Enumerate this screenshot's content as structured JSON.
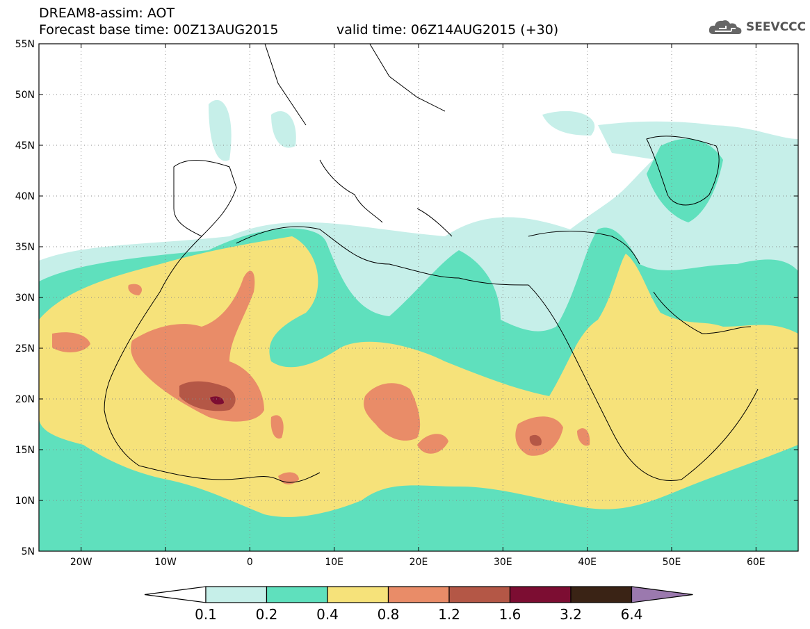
{
  "header": {
    "title_line1": "DREAM8-assim: AOT",
    "title_line2_base": "Forecast base time: 00Z13AUG2015",
    "title_line2_valid": "valid time: 06Z14AUG2015 (+30)"
  },
  "logo": {
    "text": "SEEVCCC",
    "icon": "cloud-logo-icon"
  },
  "map": {
    "lon_range": [
      -25,
      65
    ],
    "lat_range": [
      5,
      55
    ],
    "lat_ticks": [
      "55N",
      "50N",
      "45N",
      "40N",
      "35N",
      "30N",
      "25N",
      "20N",
      "15N",
      "10N",
      "5N"
    ],
    "lon_ticks": [
      "20W",
      "10W",
      "0",
      "10E",
      "20E",
      "30E",
      "40E",
      "50E",
      "60E"
    ],
    "grid": "dotted"
  },
  "legend": {
    "labels": [
      "0.1",
      "0.2",
      "0.4",
      "0.8",
      "1.2",
      "1.6",
      "3.2",
      "6.4"
    ],
    "colors": [
      "#ffffff",
      "#c6efe9",
      "#5fe0bd",
      "#f6e27a",
      "#e98c68",
      "#b45746",
      "#7c0d32",
      "#3a2315",
      "#9b79ae"
    ]
  }
}
